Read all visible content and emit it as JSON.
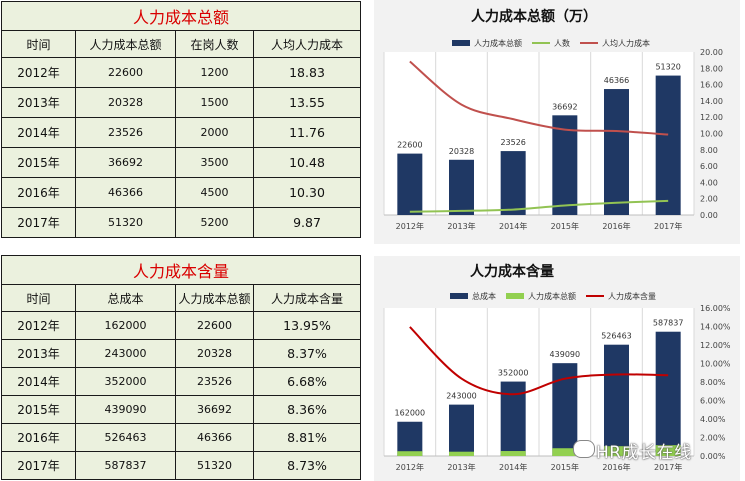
{
  "table1": {
    "title": "人力成本总额",
    "headers": [
      "时间",
      "人力成本总额",
      "在岗人数",
      "人均人力成本"
    ],
    "rows": [
      [
        "2012年",
        "22600",
        "1200",
        "18.83"
      ],
      [
        "2013年",
        "20328",
        "1500",
        "13.55"
      ],
      [
        "2014年",
        "23526",
        "2000",
        "11.76"
      ],
      [
        "2015年",
        "36692",
        "3500",
        "10.48"
      ],
      [
        "2016年",
        "46366",
        "4500",
        "10.30"
      ],
      [
        "2017年",
        "51320",
        "5200",
        "9.87"
      ]
    ]
  },
  "table2": {
    "title": "人力成本含量",
    "headers": [
      "时间",
      "总成本",
      "人力成本总额",
      "人力成本含量"
    ],
    "rows": [
      [
        "2012年",
        "162000",
        "22600",
        "13.95%"
      ],
      [
        "2013年",
        "243000",
        "20328",
        "8.37%"
      ],
      [
        "2014年",
        "352000",
        "23526",
        "6.68%"
      ],
      [
        "2015年",
        "439090",
        "36692",
        "8.36%"
      ],
      [
        "2016年",
        "526463",
        "46366",
        "8.81%"
      ],
      [
        "2017年",
        "587837",
        "51320",
        "8.73%"
      ]
    ]
  },
  "chart_data": [
    {
      "type": "bar",
      "title": "人力成本总额（万）",
      "categories": [
        "2012年",
        "2013年",
        "2014年",
        "2015年",
        "2016年",
        "2017年"
      ],
      "series": [
        {
          "name": "人力成本总额",
          "kind": "bar",
          "axis": "left",
          "color": "#1f3864",
          "labeled": true,
          "values": [
            22600,
            20328,
            23526,
            36692,
            46366,
            51320
          ]
        },
        {
          "name": "人数",
          "kind": "line",
          "axis": "left",
          "color": "#92c353",
          "labeled": false,
          "values": [
            1200,
            1500,
            2000,
            3500,
            4500,
            5200
          ]
        },
        {
          "name": "人均人力成本",
          "kind": "line",
          "axis": "right",
          "color": "#c0504d",
          "labeled": false,
          "values": [
            18.83,
            13.55,
            11.76,
            10.48,
            10.3,
            9.87
          ]
        }
      ],
      "ylim_left": [
        0,
        60000
      ],
      "ylim_right": [
        0,
        20
      ],
      "right_ticks": [
        "0.00",
        "2.00",
        "4.00",
        "6.00",
        "8.00",
        "10.00",
        "12.00",
        "14.00",
        "16.00",
        "18.00",
        "20.00"
      ],
      "legend": "top",
      "grid": false
    },
    {
      "type": "bar",
      "title": "人力成本含量",
      "categories": [
        "2012年",
        "2013年",
        "2014年",
        "2015年",
        "2016年",
        "2017年"
      ],
      "series": [
        {
          "name": "总成本",
          "kind": "bar",
          "axis": "left",
          "color": "#1f3864",
          "labeled": true,
          "values": [
            162000,
            243000,
            352000,
            439090,
            526463,
            587837
          ]
        },
        {
          "name": "人力成本总额",
          "kind": "bar",
          "axis": "left",
          "color": "#92d050",
          "labeled": false,
          "values": [
            22600,
            20328,
            23526,
            36692,
            46366,
            51320
          ]
        },
        {
          "name": "人力成本含量",
          "kind": "line",
          "axis": "right",
          "color": "#c00000",
          "labeled": false,
          "values": [
            13.95,
            8.37,
            6.68,
            8.36,
            8.81,
            8.73
          ]
        }
      ],
      "ylim_left": [
        0,
        700000
      ],
      "ylim_right": [
        0,
        16
      ],
      "right_ticks": [
        "0.00%",
        "2.00%",
        "4.00%",
        "6.00%",
        "8.00%",
        "10.00%",
        "12.00%",
        "14.00%",
        "16.00%"
      ],
      "legend": "top",
      "grid": false
    }
  ],
  "watermark": "HR成长在线"
}
